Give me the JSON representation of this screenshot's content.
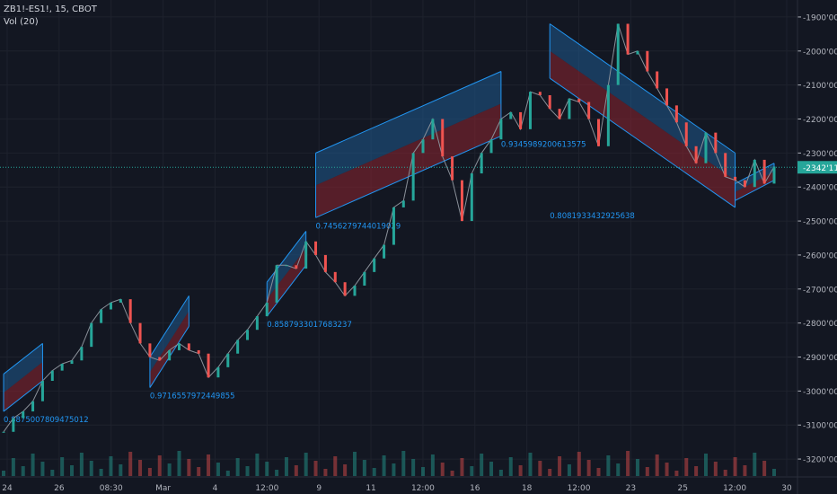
{
  "header": {
    "symbol_line": "ZB1!-ES1!, 15, CBOT",
    "volume_line": "Vol (20)"
  },
  "colors": {
    "background": "#131722",
    "grid": "#1e222d",
    "axis_text": "#b2b5be",
    "up": "#26a69a",
    "down": "#ef5350",
    "channel_upper_fill": "#1f5a8e",
    "channel_lower_fill": "#8e2530",
    "channel_line": "#2196f3",
    "label_text": "#2196f3",
    "price_line": "#26a69a"
  },
  "chart_data": {
    "type": "line",
    "title": "",
    "xlabel": "",
    "ylabel": "",
    "grid": true,
    "scale": "linear",
    "price_axis": {
      "ylim": [
        -3250,
        -1850
      ],
      "ticks": [
        -1900,
        -2000,
        -2100,
        -2200,
        -2300,
        -2400,
        -2500,
        -2600,
        -2700,
        -2800,
        -2900,
        -3000,
        -3100,
        -3200
      ],
      "tick_labels": [
        "-1900'00",
        "-2000'00",
        "-2100'00",
        "-2200'00",
        "-2300'00",
        "-2400'00",
        "-2500'00",
        "-2600'00",
        "-2700'00",
        "-2800'00",
        "-2900'00",
        "-3000'00",
        "-3100'00",
        "-3200'00"
      ]
    },
    "last_price": {
      "value": -2342,
      "label": "-2342'11"
    },
    "time_axis": {
      "labels": [
        "24",
        "26",
        "08:30",
        "Mar",
        "4",
        "12:00",
        "9",
        "11",
        "12:00",
        "16",
        "18",
        "12:00",
        "23",
        "25",
        "12:00",
        "30"
      ]
    },
    "series": [
      {
        "values": [
          -3120,
          -3080,
          -3060,
          -3030,
          -2970,
          -2940,
          -2920,
          -2910,
          -2870,
          -2800,
          -2760,
          -2740,
          -2730,
          -2800,
          -2860,
          -2900,
          -2910,
          -2880,
          -2860,
          -2880,
          -2890,
          -2960,
          -2930,
          -2890,
          -2850,
          -2820,
          -2780,
          -2740,
          -2630,
          -2630,
          -2640,
          -2560,
          -2600,
          -2650,
          -2680,
          -2720,
          -2690,
          -2650,
          -2610,
          -2570,
          -2460,
          -2440,
          -2300,
          -2260,
          -2200,
          -2310,
          -2380,
          -2500,
          -2360,
          -2300,
          -2260,
          -2200,
          -2180,
          -2230,
          -2120,
          -2130,
          -2170,
          -2200,
          -2140,
          -2150,
          -2200,
          -2280,
          -2100,
          -1920,
          -2010,
          -2000,
          -2060,
          -2110,
          -2160,
          -2210,
          -2280,
          -2330,
          -2240,
          -2300,
          -2370,
          -2380,
          -2400,
          -2320,
          -2390,
          -2340
        ]
      }
    ],
    "regression_channels": [
      {
        "label": "0.8875007809475012",
        "x": [
          0,
          4
        ],
        "upper": [
          -2950,
          -2860
        ],
        "center": [
          -3005,
          -2915
        ],
        "lower": [
          -3060,
          -2970
        ]
      },
      {
        "label": "0.9716557972449855",
        "x": [
          15,
          19
        ],
        "upper": [
          -2900,
          -2720
        ],
        "center": [
          -2945,
          -2765
        ],
        "lower": [
          -2990,
          -2810
        ]
      },
      {
        "label": "0.8587933017683237",
        "x": [
          27,
          31
        ],
        "upper": [
          -2680,
          -2530
        ],
        "center": [
          -2730,
          -2580
        ],
        "lower": [
          -2780,
          -2630
        ]
      },
      {
        "label": "0.7456279744019029",
        "x": [
          32,
          51
        ],
        "upper": [
          -2300,
          -2060
        ],
        "center": [
          -2395,
          -2155
        ],
        "lower": [
          -2490,
          -2250
        ]
      },
      {
        "label": "0.9345989200613575",
        "x": [
          51,
          51
        ],
        "upper": [
          -2060,
          -2060
        ],
        "center": [
          -2155,
          -2155
        ],
        "lower": [
          -2250,
          -2250
        ]
      },
      {
        "label": "0.8081933432925638",
        "x": [
          56,
          75
        ],
        "upper": [
          -1920,
          -2300
        ],
        "center": [
          -2000,
          -2380
        ],
        "lower": [
          -2080,
          -2460
        ]
      },
      {
        "label": "",
        "x": [
          75,
          79
        ],
        "upper": [
          -2390,
          -2330
        ],
        "center": [
          -2415,
          -2355
        ],
        "lower": [
          -2440,
          -2380
        ]
      }
    ]
  }
}
